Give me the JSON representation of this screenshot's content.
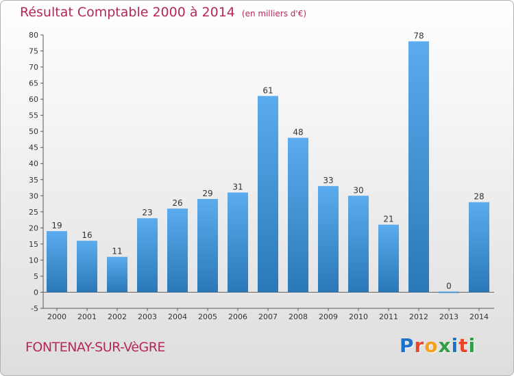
{
  "title": "Résultat Comptable 2000 à 2014",
  "subtitle": "(en milliers d'€)",
  "town": "FONTENAY-SUR-VèGRE",
  "logo": {
    "text": "Proxiti",
    "colors": [
      "#1a73c9",
      "#e8452c",
      "#f4a11d",
      "#2f9e44",
      "#1a73c9",
      "#e8452c",
      "#2f9e44"
    ]
  },
  "chart_data": {
    "type": "bar",
    "title": "Résultat Comptable 2000 à 2014",
    "subtitle": "(en milliers d'€)",
    "categories": [
      "2000",
      "2001",
      "2002",
      "2003",
      "2004",
      "2005",
      "2006",
      "2007",
      "2008",
      "2009",
      "2010",
      "2011",
      "2012",
      "2013",
      "2014"
    ],
    "values": [
      19,
      16,
      11,
      23,
      26,
      29,
      31,
      61,
      48,
      33,
      30,
      21,
      78,
      0,
      28
    ],
    "ylim": [
      -5,
      80
    ],
    "yticks": [
      -5,
      0,
      5,
      10,
      15,
      20,
      25,
      30,
      35,
      40,
      45,
      50,
      55,
      60,
      65,
      70,
      75,
      80
    ],
    "grid": false,
    "bar_color_top": "#5aacef",
    "bar_color_bottom": "#2a78b8"
  }
}
